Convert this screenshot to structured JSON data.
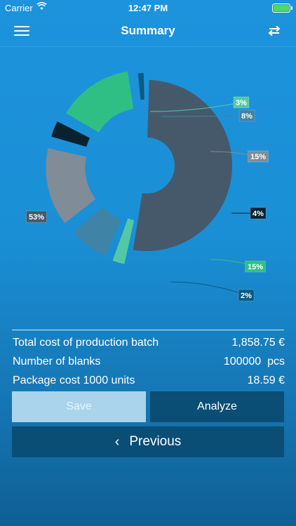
{
  "status_bar": {
    "carrier": "Carrier",
    "time": "12:47 PM"
  },
  "nav": {
    "title": "Summary",
    "menu_icon": "hamburger-menu-icon",
    "swap_icon": "swap-arrows-icon"
  },
  "chart_data": {
    "type": "pie",
    "style": "donut, exploded slices",
    "slices": [
      {
        "label": "53%",
        "value": 53,
        "color": "#46596a"
      },
      {
        "label": "3%",
        "value": 3,
        "color": "#54c8a6"
      },
      {
        "label": "8%",
        "value": 8,
        "color": "#3f83a6"
      },
      {
        "label": "15%",
        "value": 15,
        "color": "#808c97"
      },
      {
        "label": "4%",
        "value": 4,
        "color": "#0a2230"
      },
      {
        "label": "15%",
        "value": 15,
        "color": "#2fbf85"
      },
      {
        "label": "2%",
        "value": 2,
        "color": "#0a5a82"
      }
    ]
  },
  "summary": {
    "rows": [
      {
        "label": "Total cost of production batch",
        "value": "1,858.75 €"
      },
      {
        "label": "Number of blanks",
        "value": "100000  pcs"
      },
      {
        "label": "Package cost 1000 units",
        "value": "18.59 €"
      }
    ]
  },
  "buttons": {
    "save": "Save",
    "analyze": "Analyze",
    "previous": "Previous",
    "previous_icon": "chevron-left-icon"
  }
}
